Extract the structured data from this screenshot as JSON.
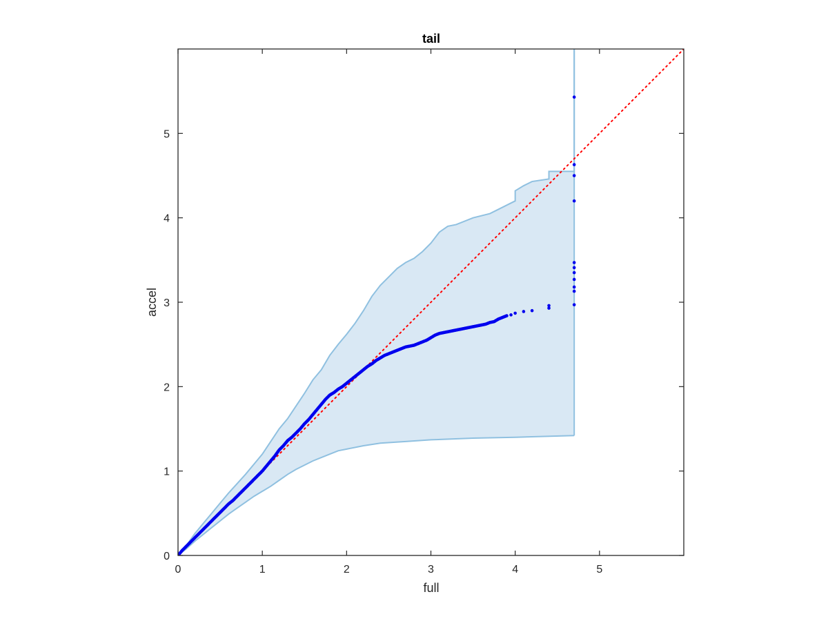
{
  "chart_data": {
    "type": "scatter",
    "title": "tail",
    "xlabel": "full",
    "ylabel": "accel",
    "xlim": [
      0,
      6
    ],
    "ylim": [
      0,
      6
    ],
    "xticks": [
      0,
      1,
      2,
      3,
      4,
      5
    ],
    "yticks": [
      0,
      1,
      2,
      3,
      4,
      5
    ],
    "grid": false,
    "legend": "none",
    "colors": {
      "band_fill": "#d9e8f4",
      "band_edge": "#8fc0e0",
      "points": "#0000ee",
      "reference": "#ff0000",
      "axes": "#262626"
    },
    "reference_line": {
      "style": "dotted",
      "x": [
        0,
        6
      ],
      "y": [
        0,
        6
      ]
    },
    "band": {
      "upper": [
        [
          0,
          0
        ],
        [
          0.1,
          0.12
        ],
        [
          0.2,
          0.26
        ],
        [
          0.3,
          0.38
        ],
        [
          0.4,
          0.5
        ],
        [
          0.5,
          0.62
        ],
        [
          0.6,
          0.74
        ],
        [
          0.7,
          0.85
        ],
        [
          0.8,
          0.96
        ],
        [
          0.9,
          1.08
        ],
        [
          1.0,
          1.2
        ],
        [
          1.1,
          1.35
        ],
        [
          1.2,
          1.5
        ],
        [
          1.3,
          1.62
        ],
        [
          1.4,
          1.77
        ],
        [
          1.5,
          1.92
        ],
        [
          1.6,
          2.08
        ],
        [
          1.7,
          2.2
        ],
        [
          1.8,
          2.37
        ],
        [
          1.9,
          2.5
        ],
        [
          2.0,
          2.62
        ],
        [
          2.1,
          2.75
        ],
        [
          2.2,
          2.9
        ],
        [
          2.3,
          3.07
        ],
        [
          2.4,
          3.2
        ],
        [
          2.5,
          3.3
        ],
        [
          2.6,
          3.4
        ],
        [
          2.7,
          3.47
        ],
        [
          2.8,
          3.52
        ],
        [
          2.9,
          3.6
        ],
        [
          3.0,
          3.7
        ],
        [
          3.1,
          3.83
        ],
        [
          3.2,
          3.9
        ],
        [
          3.3,
          3.92
        ],
        [
          3.5,
          4.0
        ],
        [
          3.7,
          4.05
        ],
        [
          3.8,
          4.1
        ],
        [
          3.9,
          4.15
        ],
        [
          4.0,
          4.2
        ],
        [
          4.0,
          4.32
        ],
        [
          4.1,
          4.38
        ],
        [
          4.2,
          4.43
        ],
        [
          4.4,
          4.46
        ],
        [
          4.4,
          4.55
        ],
        [
          4.7,
          4.55
        ],
        [
          4.7,
          6.0
        ]
      ],
      "lower": [
        [
          0,
          0
        ],
        [
          0.1,
          0.08
        ],
        [
          0.2,
          0.17
        ],
        [
          0.3,
          0.25
        ],
        [
          0.4,
          0.33
        ],
        [
          0.5,
          0.41
        ],
        [
          0.6,
          0.49
        ],
        [
          0.7,
          0.56
        ],
        [
          0.8,
          0.63
        ],
        [
          0.9,
          0.7
        ],
        [
          1.0,
          0.76
        ],
        [
          1.1,
          0.82
        ],
        [
          1.2,
          0.89
        ],
        [
          1.3,
          0.96
        ],
        [
          1.4,
          1.02
        ],
        [
          1.5,
          1.07
        ],
        [
          1.6,
          1.12
        ],
        [
          1.7,
          1.16
        ],
        [
          1.8,
          1.2
        ],
        [
          1.9,
          1.24
        ],
        [
          2.0,
          1.26
        ],
        [
          2.2,
          1.3
        ],
        [
          2.4,
          1.33
        ],
        [
          2.7,
          1.35
        ],
        [
          3.0,
          1.37
        ],
        [
          3.5,
          1.39
        ],
        [
          4.0,
          1.4
        ],
        [
          4.7,
          1.42
        ]
      ]
    },
    "points": {
      "x": [
        0,
        0.05,
        0.1,
        0.15,
        0.2,
        0.25,
        0.3,
        0.35,
        0.4,
        0.45,
        0.5,
        0.55,
        0.6,
        0.65,
        0.7,
        0.75,
        0.8,
        0.85,
        0.9,
        0.95,
        1.0,
        1.05,
        1.1,
        1.15,
        1.2,
        1.25,
        1.3,
        1.35,
        1.4,
        1.45,
        1.5,
        1.55,
        1.6,
        1.65,
        1.7,
        1.75,
        1.8,
        1.85,
        1.9,
        1.95,
        2.0,
        2.05,
        2.1,
        2.15,
        2.2,
        2.25,
        2.3,
        2.35,
        2.4,
        2.45,
        2.5,
        2.55,
        2.6,
        2.65,
        2.7,
        2.75,
        2.8,
        2.85,
        2.9,
        2.95,
        3.0,
        3.05,
        3.1,
        3.15,
        3.2,
        3.25,
        3.3,
        3.35,
        3.4,
        3.45,
        3.5,
        3.55,
        3.6,
        3.65,
        3.7,
        3.75,
        3.8,
        3.85,
        3.9,
        3.95,
        4.0,
        4.1,
        4.2,
        4.4,
        4.4,
        4.7,
        4.7,
        4.7,
        4.7,
        4.7,
        4.7,
        4.7,
        4.7,
        4.7,
        4.7,
        4.7
      ],
      "y": [
        0,
        0.06,
        0.11,
        0.16,
        0.21,
        0.26,
        0.31,
        0.36,
        0.41,
        0.46,
        0.51,
        0.56,
        0.61,
        0.65,
        0.7,
        0.75,
        0.8,
        0.85,
        0.9,
        0.95,
        1.0,
        1.06,
        1.12,
        1.18,
        1.25,
        1.3,
        1.36,
        1.4,
        1.45,
        1.5,
        1.56,
        1.61,
        1.67,
        1.73,
        1.79,
        1.85,
        1.9,
        1.93,
        1.97,
        2.0,
        2.04,
        2.08,
        2.12,
        2.16,
        2.2,
        2.24,
        2.27,
        2.31,
        2.34,
        2.37,
        2.39,
        2.41,
        2.43,
        2.45,
        2.47,
        2.48,
        2.49,
        2.51,
        2.53,
        2.55,
        2.58,
        2.61,
        2.63,
        2.64,
        2.65,
        2.66,
        2.67,
        2.68,
        2.69,
        2.7,
        2.71,
        2.72,
        2.73,
        2.74,
        2.76,
        2.77,
        2.8,
        2.82,
        2.84,
        2.85,
        2.87,
        2.89,
        2.9,
        2.93,
        2.96,
        2.97,
        3.13,
        3.18,
        3.27,
        3.35,
        3.41,
        3.47,
        4.2,
        4.5,
        4.63,
        5.43
      ]
    }
  }
}
